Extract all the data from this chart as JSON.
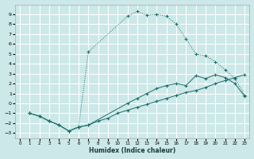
{
  "xlabel": "Humidex (Indice chaleur)",
  "bg_color": "#cce8e8",
  "grid_color": "#ffffff",
  "line_color": "#1a6e6a",
  "xlim": [
    -0.5,
    23.5
  ],
  "ylim": [
    -3.5,
    10
  ],
  "xticks": [
    0,
    1,
    2,
    3,
    4,
    5,
    6,
    7,
    8,
    9,
    10,
    11,
    12,
    13,
    14,
    15,
    16,
    17,
    18,
    19,
    20,
    21,
    22,
    23
  ],
  "yticks": [
    -3,
    -2,
    -1,
    0,
    1,
    2,
    3,
    4,
    5,
    6,
    7,
    8,
    9
  ],
  "series_peak_x": [
    1,
    2,
    3,
    4,
    5,
    6,
    7,
    11,
    12,
    13,
    14,
    15,
    16,
    17,
    18,
    19,
    20,
    21,
    22,
    23
  ],
  "series_peak_y": [
    -1,
    -1.3,
    -1.8,
    -2.2,
    -2.8,
    -2.4,
    5.2,
    8.8,
    9.3,
    8.9,
    9.0,
    8.8,
    8.0,
    6.5,
    5.0,
    4.8,
    4.2,
    3.4,
    2.5,
    0.8
  ],
  "series_mid_x": [
    1,
    2,
    3,
    4,
    5,
    6,
    7,
    11,
    12,
    13,
    14,
    15,
    16,
    17,
    18,
    19,
    20,
    21,
    22,
    23
  ],
  "series_mid_y": [
    -1,
    -1.3,
    -1.8,
    -2.2,
    -2.8,
    -2.4,
    -2.2,
    0.0,
    0.5,
    1.0,
    1.5,
    1.8,
    2.0,
    1.8,
    2.8,
    2.5,
    2.9,
    2.6,
    2.0,
    0.7
  ],
  "series_low_x": [
    1,
    2,
    3,
    4,
    5,
    6,
    7,
    8,
    9,
    10,
    11,
    12,
    13,
    14,
    15,
    16,
    17,
    18,
    19,
    20,
    21,
    22,
    23
  ],
  "series_low_y": [
    -1,
    -1.3,
    -1.8,
    -2.2,
    -2.8,
    -2.4,
    -2.2,
    -1.8,
    -1.5,
    -1.0,
    -0.7,
    -0.4,
    -0.1,
    0.2,
    0.5,
    0.8,
    1.1,
    1.3,
    1.6,
    2.0,
    2.3,
    2.6,
    2.9
  ]
}
